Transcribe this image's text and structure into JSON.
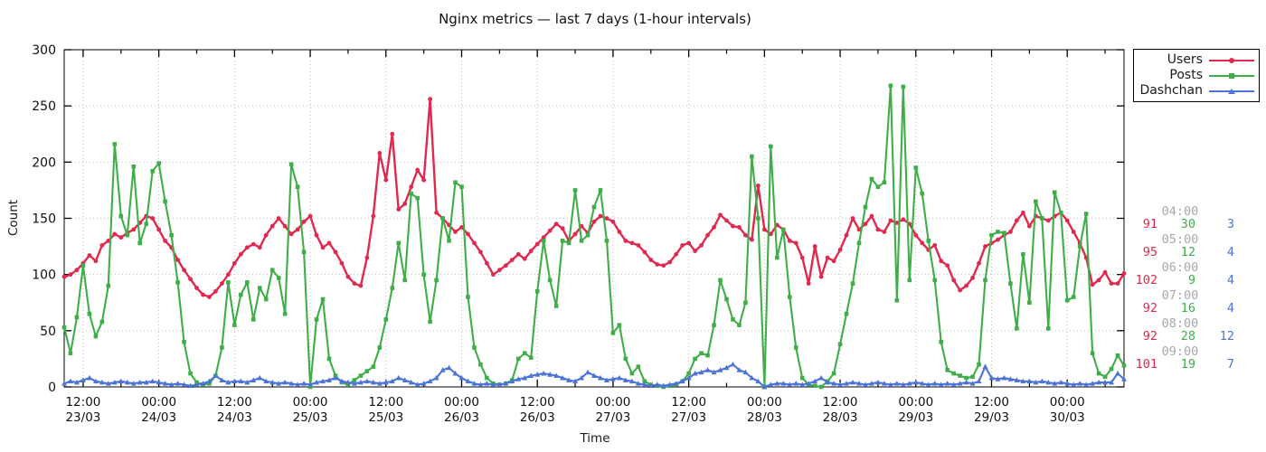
{
  "colors": {
    "users": "#e0294e",
    "posts": "#3fae49",
    "dashchan": "#4c73d6",
    "axis": "#000000",
    "grid": "#bdbdbd",
    "muted_time_label": "#a8a8a8"
  },
  "chart_data": {
    "type": "line",
    "title": "Nginx metrics — last 7 days (1-hour intervals)",
    "xlabel": "Time",
    "ylabel": "Count",
    "ylim": [
      0,
      300
    ],
    "yticks": [
      0,
      50,
      100,
      150,
      200,
      250,
      300
    ],
    "grid": true,
    "legend_position": "top-right-outside",
    "interval": "1-hour",
    "x_ticks": [
      {
        "i": 3,
        "time": "12:00",
        "date": "23/03"
      },
      {
        "i": 15,
        "time": "00:00",
        "date": "24/03"
      },
      {
        "i": 27,
        "time": "12:00",
        "date": "24/03"
      },
      {
        "i": 39,
        "time": "00:00",
        "date": "25/03"
      },
      {
        "i": 51,
        "time": "12:00",
        "date": "25/03"
      },
      {
        "i": 63,
        "time": "00:00",
        "date": "26/03"
      },
      {
        "i": 75,
        "time": "12:00",
        "date": "26/03"
      },
      {
        "i": 87,
        "time": "00:00",
        "date": "27/03"
      },
      {
        "i": 99,
        "time": "12:00",
        "date": "27/03"
      },
      {
        "i": 111,
        "time": "00:00",
        "date": "28/03"
      },
      {
        "i": 123,
        "time": "12:00",
        "date": "28/03"
      },
      {
        "i": 135,
        "time": "00:00",
        "date": "29/03"
      },
      {
        "i": 147,
        "time": "12:00",
        "date": "29/03"
      },
      {
        "i": 159,
        "time": "00:00",
        "date": "30/03"
      }
    ],
    "series": [
      {
        "name": "Users",
        "color": "#e0294e",
        "marker": "circle",
        "values": [
          98,
          100,
          104,
          110,
          117,
          112,
          126,
          130,
          136,
          133,
          137,
          140,
          146,
          152,
          150,
          140,
          130,
          124,
          113,
          104,
          96,
          88,
          82,
          80,
          85,
          92,
          100,
          110,
          118,
          124,
          127,
          124,
          135,
          143,
          150,
          143,
          136,
          140,
          147,
          152,
          135,
          124,
          128,
          120,
          110,
          98,
          92,
          90,
          115,
          152,
          208,
          184,
          225,
          158,
          163,
          178,
          193,
          184,
          256,
          155,
          150,
          144,
          138,
          142,
          136,
          128,
          120,
          110,
          100,
          104,
          108,
          113,
          118,
          114,
          121,
          127,
          133,
          139,
          145,
          141,
          130,
          136,
          143,
          137,
          147,
          152,
          150,
          147,
          138,
          130,
          128,
          126,
          120,
          113,
          109,
          108,
          111,
          118,
          126,
          128,
          121,
          126,
          135,
          142,
          153,
          148,
          143,
          142,
          135,
          131,
          179,
          140,
          136,
          144,
          140,
          130,
          128,
          115,
          92,
          125,
          98,
          115,
          112,
          122,
          135,
          150,
          140,
          145,
          152,
          140,
          138,
          148,
          146,
          149,
          145,
          135,
          128,
          122,
          126,
          112,
          108,
          95,
          86,
          90,
          97,
          110,
          125,
          128,
          131,
          135,
          138,
          148,
          155,
          143,
          152,
          150,
          148,
          152,
          155,
          148,
          138,
          128,
          115,
          91,
          95,
          102,
          92,
          92,
          101
        ]
      },
      {
        "name": "Posts",
        "color": "#3fae49",
        "marker": "square",
        "values": [
          53,
          30,
          62,
          108,
          65,
          45,
          58,
          90,
          216,
          152,
          135,
          196,
          128,
          145,
          192,
          199,
          165,
          135,
          93,
          40,
          12,
          4,
          2,
          3,
          10,
          35,
          93,
          55,
          82,
          93,
          60,
          88,
          78,
          104,
          97,
          65,
          198,
          178,
          120,
          0,
          60,
          78,
          25,
          10,
          4,
          2,
          6,
          10,
          14,
          18,
          35,
          60,
          88,
          128,
          95,
          172,
          168,
          100,
          58,
          95,
          150,
          130,
          182,
          178,
          80,
          35,
          20,
          8,
          3,
          2,
          3,
          6,
          25,
          30,
          26,
          85,
          130,
          95,
          72,
          130,
          128,
          175,
          130,
          135,
          160,
          175,
          130,
          48,
          55,
          25,
          12,
          18,
          5,
          2,
          1,
          0,
          1,
          2,
          5,
          12,
          25,
          30,
          28,
          55,
          95,
          78,
          60,
          55,
          75,
          205,
          150,
          0,
          214,
          115,
          140,
          80,
          35,
          8,
          2,
          1,
          0,
          5,
          12,
          38,
          65,
          92,
          128,
          160,
          185,
          178,
          182,
          268,
          77,
          267,
          95,
          195,
          172,
          130,
          95,
          40,
          15,
          12,
          10,
          8,
          9,
          20,
          95,
          135,
          138,
          137,
          92,
          52,
          118,
          75,
          165,
          150,
          52,
          173,
          155,
          77,
          80,
          125,
          154,
          30,
          12,
          9,
          16,
          28,
          19
        ]
      },
      {
        "name": "Dashchan",
        "color": "#4c73d6",
        "marker": "triangle",
        "values": [
          3,
          5,
          4,
          6,
          8,
          5,
          4,
          3,
          4,
          5,
          4,
          3,
          4,
          4,
          5,
          4,
          3,
          2,
          3,
          2,
          1,
          2,
          3,
          5,
          10,
          6,
          4,
          5,
          5,
          4,
          6,
          8,
          5,
          4,
          3,
          4,
          3,
          2,
          3,
          2,
          4,
          5,
          6,
          8,
          5,
          4,
          3,
          4,
          5,
          4,
          3,
          4,
          5,
          8,
          6,
          4,
          2,
          3,
          5,
          8,
          15,
          17,
          12,
          8,
          5,
          3,
          2,
          3,
          2,
          2,
          3,
          5,
          7,
          8,
          10,
          11,
          12,
          11,
          10,
          8,
          6,
          5,
          8,
          13,
          10,
          8,
          6,
          7,
          8,
          6,
          5,
          3,
          2,
          1,
          2,
          1,
          2,
          3,
          5,
          8,
          12,
          13,
          15,
          13,
          15,
          17,
          20,
          15,
          13,
          8,
          5,
          0,
          2,
          3,
          3,
          2,
          3,
          2,
          3,
          5,
          8,
          4,
          3,
          2,
          3,
          4,
          3,
          2,
          3,
          4,
          3,
          2,
          3,
          2,
          3,
          4,
          3,
          2,
          3,
          2,
          3,
          2,
          3,
          4,
          3,
          5,
          18,
          8,
          7,
          8,
          7,
          6,
          5,
          5,
          4,
          5,
          4,
          3,
          4,
          3,
          2,
          3,
          2,
          3,
          4,
          4,
          4,
          12,
          7
        ]
      }
    ]
  },
  "side_table": {
    "rows": [
      {
        "time": "04:00",
        "users": "91",
        "posts": "30",
        "dashchan": "3"
      },
      {
        "time": "05:00",
        "users": "95",
        "posts": "12",
        "dashchan": "4"
      },
      {
        "time": "06:00",
        "users": "102",
        "posts": "9",
        "dashchan": "4"
      },
      {
        "time": "07:00",
        "users": "92",
        "posts": "16",
        "dashchan": "4"
      },
      {
        "time": "08:00",
        "users": "92",
        "posts": "28",
        "dashchan": "12"
      },
      {
        "time": "09:00",
        "users": "101",
        "posts": "19",
        "dashchan": "7"
      }
    ]
  }
}
